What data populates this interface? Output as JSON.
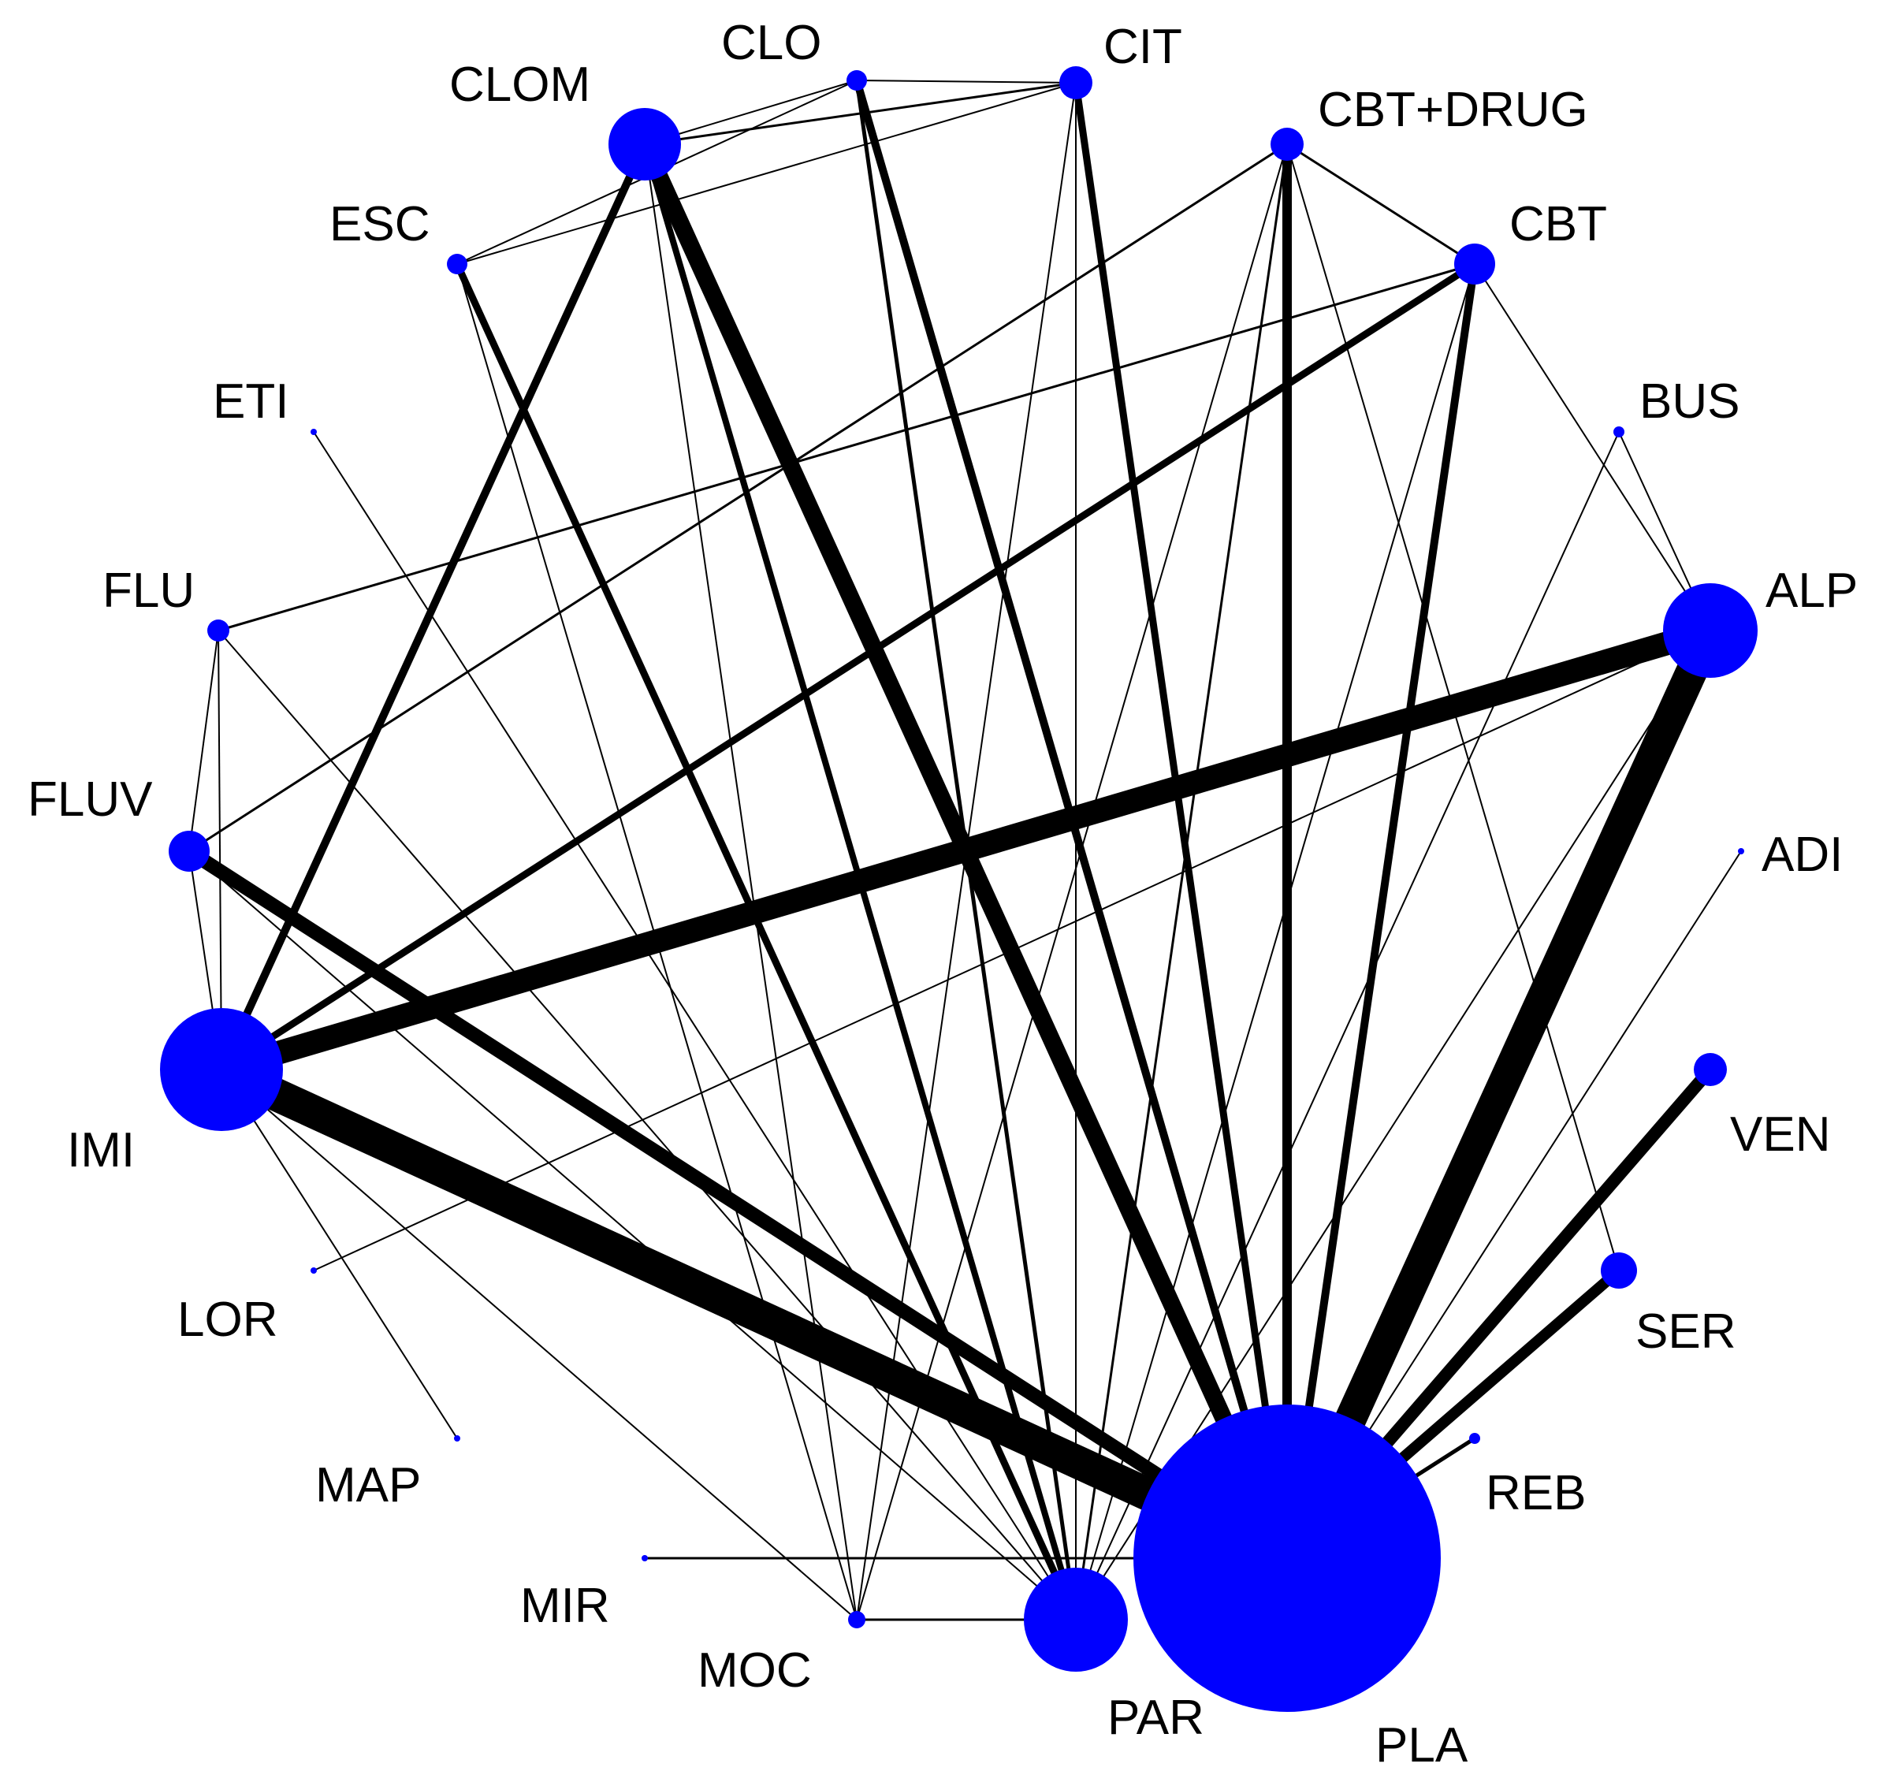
{
  "colors": {
    "node": "#0000ff",
    "edge": "#000000",
    "label": "#000000"
  },
  "nodes": [
    {
      "id": "CLO",
      "label": "CLO"
    },
    {
      "id": "CIT",
      "label": "CIT"
    },
    {
      "id": "CLOM",
      "label": "CLOM"
    },
    {
      "id": "CBT+DRUG",
      "label": "CBT+DRUG"
    },
    {
      "id": "ESC",
      "label": "ESC"
    },
    {
      "id": "CBT",
      "label": "CBT"
    },
    {
      "id": "ETI",
      "label": "ETI"
    },
    {
      "id": "BUS",
      "label": "BUS"
    },
    {
      "id": "FLU",
      "label": "FLU"
    },
    {
      "id": "ALP",
      "label": "ALP"
    },
    {
      "id": "FLUV",
      "label": "FLUV"
    },
    {
      "id": "ADI",
      "label": "ADI"
    },
    {
      "id": "IMI",
      "label": "IMI"
    },
    {
      "id": "VEN",
      "label": "VEN"
    },
    {
      "id": "LOR",
      "label": "LOR"
    },
    {
      "id": "SER",
      "label": "SER"
    },
    {
      "id": "MAP",
      "label": "MAP"
    },
    {
      "id": "REB",
      "label": "REB"
    },
    {
      "id": "MIR",
      "label": "MIR"
    },
    {
      "id": "MOC",
      "label": "MOC"
    },
    {
      "id": "PAR",
      "label": "PAR"
    },
    {
      "id": "PLA",
      "label": "PLA"
    }
  ]
}
